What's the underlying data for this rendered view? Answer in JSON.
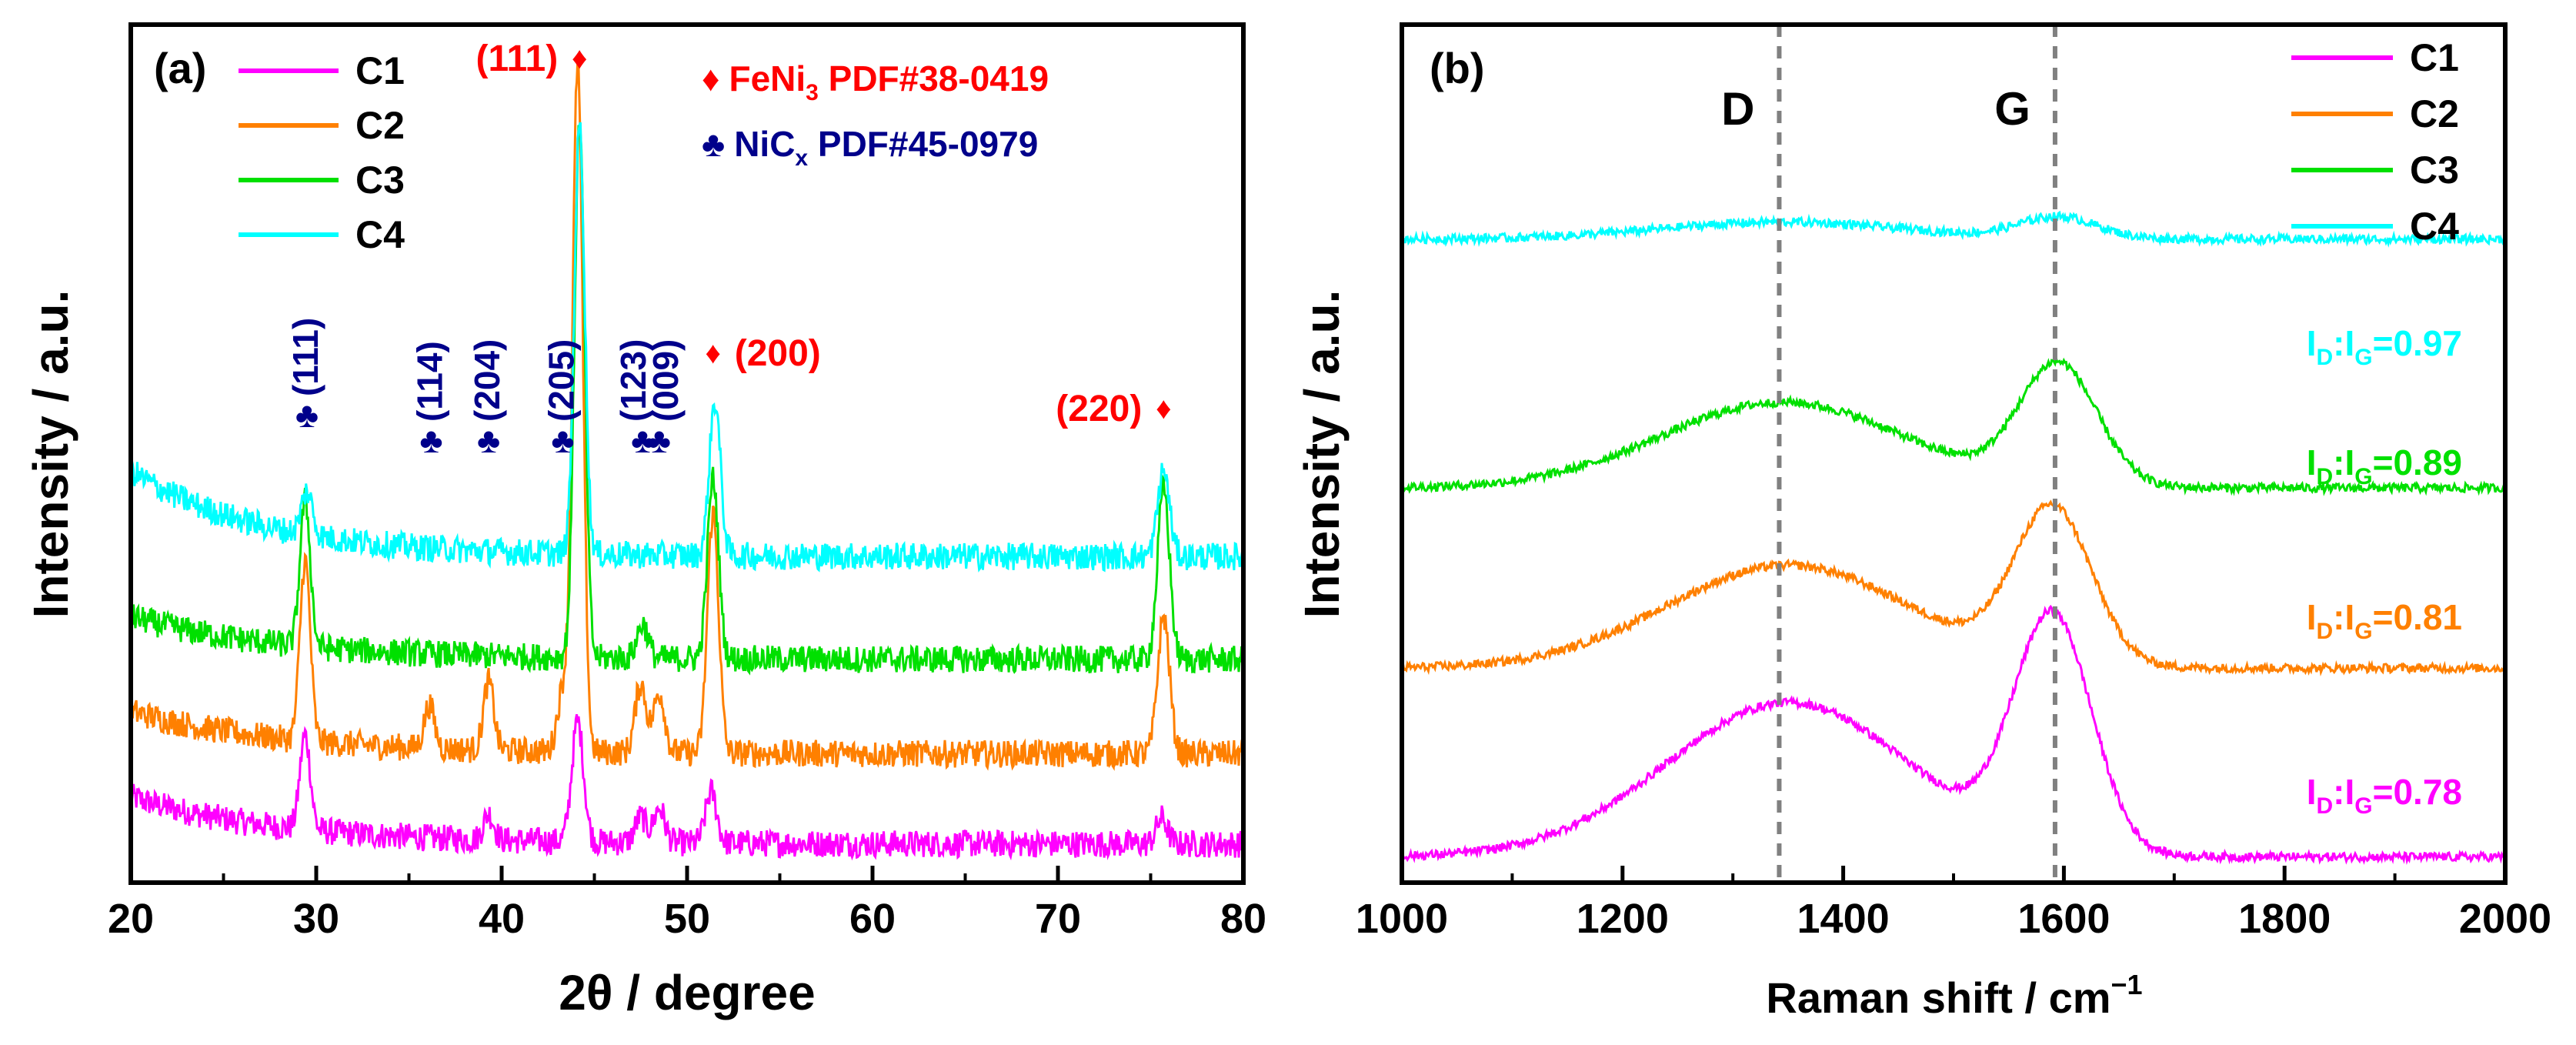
{
  "colors": {
    "C1": "#ff00ff",
    "C2": "#ff8000",
    "C3": "#00e000",
    "C4": "#00ffff",
    "feni3": "#ff0000",
    "nicx": "#00008b",
    "axis": "#000000",
    "dashed": "#808080"
  },
  "chart_data": [
    {
      "type": "line",
      "panel_label": "(a)",
      "xlabel": "2θ / degree",
      "ylabel": "Intensity / a.u.",
      "xlim": [
        20,
        80
      ],
      "ylim": [
        0,
        100
      ],
      "xticks": [
        20,
        30,
        40,
        50,
        60,
        70,
        80
      ],
      "yticks_shown": false,
      "legend": {
        "placement": "top-left",
        "entries": [
          "C1",
          "C2",
          "C3",
          "C4"
        ]
      },
      "phase_legend": [
        {
          "symbol": "♦",
          "text": "FeNi",
          "sub": "3",
          "text2": " PDF#38-0419",
          "color": "#ff0000"
        },
        {
          "symbol": "♣",
          "text": "NiC",
          "sub": "x",
          "text2": " PDF#45-0979",
          "color": "#00008b"
        }
      ],
      "noise": 1.6,
      "series": [
        {
          "name": "C1",
          "baseline": 4.5,
          "slope_start": 5.5,
          "decay": 8,
          "peaks": [
            [
              29.4,
              11,
              0.28
            ],
            [
              39.3,
              3,
              0.28
            ],
            [
              44.1,
              14,
              0.32
            ],
            [
              47.5,
              3,
              0.3
            ],
            [
              48.5,
              4,
              0.3
            ],
            [
              51.3,
              6,
              0.3
            ],
            [
              75.6,
              3,
              0.3
            ]
          ]
        },
        {
          "name": "C2",
          "baseline": 15,
          "slope_start": 5,
          "decay": 8,
          "peaks": [
            [
              29.4,
              21,
              0.28
            ],
            [
              36.1,
              5,
              0.28
            ],
            [
              39.3,
              8,
              0.28
            ],
            [
              43.3,
              7,
              0.3
            ],
            [
              44.1,
              80,
              0.28
            ],
            [
              47.5,
              8,
              0.3
            ],
            [
              48.5,
              7,
              0.3
            ],
            [
              51.4,
              28,
              0.3
            ],
            [
              75.7,
              16,
              0.32
            ]
          ]
        },
        {
          "name": "C3",
          "baseline": 26,
          "slope_start": 5,
          "decay": 8,
          "peaks": [
            [
              29.4,
              17,
              0.28
            ],
            [
              44.2,
              62,
              0.28
            ],
            [
              47.6,
              4,
              0.3
            ],
            [
              51.4,
              21,
              0.3
            ],
            [
              75.7,
              20,
              0.32
            ]
          ]
        },
        {
          "name": "C4",
          "baseline": 38,
          "slope_start": 10,
          "decay": 7,
          "peaks": [
            [
              29.5,
              5,
              0.3
            ],
            [
              44.2,
              50,
              0.28
            ],
            [
              51.5,
              18,
              0.3
            ],
            [
              75.7,
              10,
              0.32
            ]
          ]
        }
      ],
      "annotations": [
        {
          "text": "(111)",
          "symbol": "♦",
          "phase": "FeNi3",
          "x": 44.2
        },
        {
          "text": "(200)",
          "symbol": "♦",
          "phase": "FeNi3",
          "x": 51.4
        },
        {
          "text": "(220)",
          "symbol": "♦",
          "phase": "FeNi3",
          "x": 75.7
        },
        {
          "text": "(111)",
          "symbol": "♣",
          "phase": "NiCx",
          "x": 29.5
        },
        {
          "text": "(114)",
          "symbol": "♣",
          "phase": "NiCx",
          "x": 36.2
        },
        {
          "text": "(204)",
          "symbol": "♣",
          "phase": "NiCx",
          "x": 39.3
        },
        {
          "text": "(205)",
          "symbol": "♣",
          "phase": "NiCx",
          "x": 43.3
        },
        {
          "text": "(123)",
          "symbol": "♣",
          "phase": "NiCx",
          "x": 47.6
        },
        {
          "text": "(009)",
          "symbol": "♣",
          "phase": "NiCx",
          "x": 48.5
        }
      ]
    },
    {
      "type": "line",
      "panel_label": "(b)",
      "xlabel": "Raman shift / cm",
      "xlabel_sup": "−1",
      "ylabel": "Intensity / a.u.",
      "xlim": [
        1000,
        2000
      ],
      "ylim": [
        0,
        100
      ],
      "xticks": [
        1000,
        1200,
        1400,
        1600,
        1800,
        2000
      ],
      "yticks_shown": false,
      "legend": {
        "placement": "top-right",
        "entries": [
          "C1",
          "C2",
          "C3",
          "C4"
        ]
      },
      "reference_lines": [
        {
          "label": "D",
          "x": 1342
        },
        {
          "label": "G",
          "x": 1592
        }
      ],
      "noise": 0.5,
      "series": [
        {
          "name": "C1",
          "baseline": 3,
          "D": [
            1350,
            18,
            110
          ],
          "G": [
            1590,
            27,
            35
          ],
          "ratio": "0.78"
        },
        {
          "name": "C2",
          "baseline": 25,
          "D": [
            1350,
            12,
            110
          ],
          "G": [
            1590,
            18,
            35
          ],
          "ratio": "0.81"
        },
        {
          "name": "C3",
          "baseline": 46,
          "D": [
            1345,
            10,
            110
          ],
          "G": [
            1595,
            14,
            35
          ],
          "ratio": "0.89"
        },
        {
          "name": "C4",
          "baseline": 75,
          "D": [
            1345,
            2,
            110
          ],
          "G": [
            1595,
            2.5,
            35
          ],
          "ratio": "0.97"
        }
      ],
      "ratio_label": {
        "prefix": "I",
        "sub1": "D",
        "mid": ":I",
        "sub2": "G",
        "sep": "="
      }
    }
  ]
}
